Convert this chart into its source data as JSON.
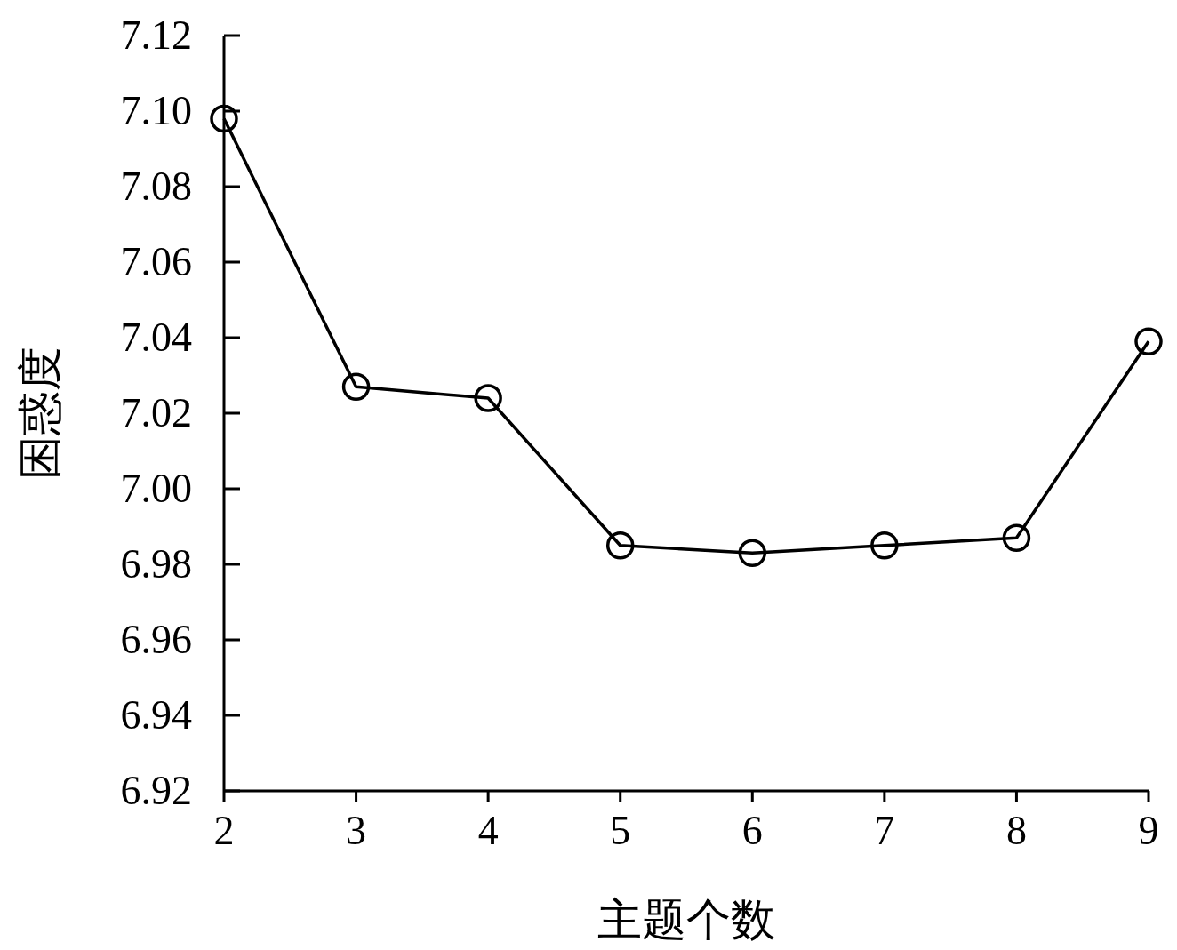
{
  "chart_data": {
    "type": "line",
    "xlabel": "主题个数",
    "ylabel": "困惑度",
    "x": [
      2,
      3,
      4,
      5,
      6,
      7,
      8,
      9
    ],
    "series": [
      {
        "color": "#000000",
        "values": [
          7.098,
          7.027,
          7.024,
          6.985,
          6.983,
          6.985,
          6.987,
          7.039
        ]
      }
    ],
    "xlim": [
      2,
      9
    ],
    "xticks": [
      2,
      3,
      4,
      5,
      6,
      7,
      8,
      9
    ],
    "ylim": [
      6.92,
      7.12
    ],
    "yticks": [
      {
        "value": 6.92,
        "label": "6.92"
      },
      {
        "value": 6.94,
        "label": "6.94"
      },
      {
        "value": 6.96,
        "label": "6.96"
      },
      {
        "value": 6.98,
        "label": "6.98"
      },
      {
        "value": 7.0,
        "label": "7.00"
      },
      {
        "value": 7.02,
        "label": "7.02"
      },
      {
        "value": 7.04,
        "label": "7.04"
      },
      {
        "value": 7.06,
        "label": "7.06"
      },
      {
        "value": 7.08,
        "label": "7.08"
      },
      {
        "value": 7.1,
        "label": "7.10"
      },
      {
        "value": 7.12,
        "label": "7.12"
      }
    ],
    "marker": "circle",
    "line_style": "solid",
    "grid": false
  }
}
